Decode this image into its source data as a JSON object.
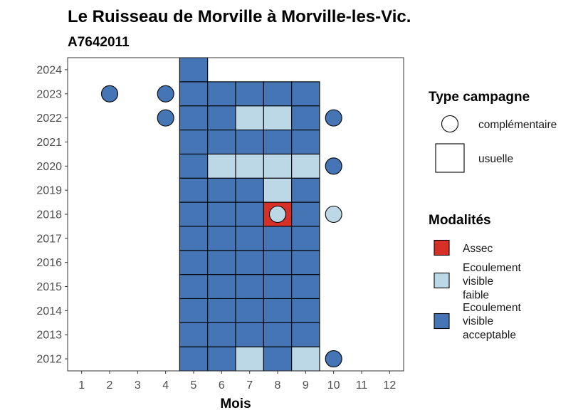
{
  "chart_data": {
    "type": "heatmap",
    "title": "Le Ruisseau de Morville à Morville-les-Vic.",
    "subtitle": "A7642011",
    "xlabel": "Mois",
    "ylabel": "",
    "x_ticks": [
      1,
      2,
      3,
      4,
      5,
      6,
      7,
      8,
      9,
      10,
      11,
      12
    ],
    "y_ticks": [
      2012,
      2013,
      2014,
      2015,
      2016,
      2017,
      2018,
      2019,
      2020,
      2021,
      2022,
      2023,
      2024
    ],
    "xlim": [
      0.5,
      12.5
    ],
    "ylim": [
      2011.5,
      2024.5
    ],
    "grid": false,
    "colors": {
      "Assec": "#d73027",
      "Ecoulement visible faible": "#bcd7e6",
      "Ecoulement visible acceptable": "#4575b4"
    },
    "legend_type": {
      "title": "Type campagne",
      "items": [
        {
          "label": "complémentaire",
          "shape": "circle"
        },
        {
          "label": "usuelle",
          "shape": "square"
        }
      ]
    },
    "legend_modalites": {
      "title": "Modalités",
      "items": [
        {
          "key": "Assec",
          "lines": [
            "Assec"
          ]
        },
        {
          "key": "Ecoulement visible faible",
          "lines": [
            "Ecoulement",
            "visible",
            "faible"
          ]
        },
        {
          "key": "Ecoulement visible acceptable",
          "lines": [
            "Ecoulement",
            "visible",
            "acceptable"
          ]
        }
      ]
    },
    "usuelle": [
      {
        "year": 2012,
        "values": {
          "5": "Ecoulement visible acceptable",
          "6": "Ecoulement visible acceptable",
          "7": "Ecoulement visible faible",
          "8": "Ecoulement visible acceptable",
          "9": "Ecoulement visible faible"
        }
      },
      {
        "year": 2013,
        "values": {
          "5": "Ecoulement visible acceptable",
          "6": "Ecoulement visible acceptable",
          "7": "Ecoulement visible acceptable",
          "8": "Ecoulement visible acceptable",
          "9": "Ecoulement visible acceptable"
        }
      },
      {
        "year": 2014,
        "values": {
          "5": "Ecoulement visible acceptable",
          "6": "Ecoulement visible acceptable",
          "7": "Ecoulement visible acceptable",
          "8": "Ecoulement visible acceptable",
          "9": "Ecoulement visible acceptable"
        }
      },
      {
        "year": 2015,
        "values": {
          "5": "Ecoulement visible acceptable",
          "6": "Ecoulement visible acceptable",
          "7": "Ecoulement visible acceptable",
          "8": "Ecoulement visible acceptable",
          "9": "Ecoulement visible acceptable"
        }
      },
      {
        "year": 2016,
        "values": {
          "5": "Ecoulement visible acceptable",
          "6": "Ecoulement visible acceptable",
          "7": "Ecoulement visible acceptable",
          "8": "Ecoulement visible acceptable",
          "9": "Ecoulement visible acceptable"
        }
      },
      {
        "year": 2017,
        "values": {
          "5": "Ecoulement visible acceptable",
          "6": "Ecoulement visible acceptable",
          "7": "Ecoulement visible acceptable",
          "8": "Ecoulement visible acceptable",
          "9": "Ecoulement visible acceptable"
        }
      },
      {
        "year": 2018,
        "values": {
          "5": "Ecoulement visible acceptable",
          "6": "Ecoulement visible acceptable",
          "7": "Ecoulement visible acceptable",
          "8": "Assec",
          "9": "Ecoulement visible acceptable"
        }
      },
      {
        "year": 2019,
        "values": {
          "5": "Ecoulement visible acceptable",
          "6": "Ecoulement visible acceptable",
          "7": "Ecoulement visible acceptable",
          "8": "Ecoulement visible faible",
          "9": "Ecoulement visible acceptable"
        }
      },
      {
        "year": 2020,
        "values": {
          "5": "Ecoulement visible acceptable",
          "6": "Ecoulement visible faible",
          "7": "Ecoulement visible faible",
          "8": "Ecoulement visible faible",
          "9": "Ecoulement visible faible"
        }
      },
      {
        "year": 2021,
        "values": {
          "5": "Ecoulement visible acceptable",
          "6": "Ecoulement visible acceptable",
          "7": "Ecoulement visible acceptable",
          "8": "Ecoulement visible acceptable",
          "9": "Ecoulement visible acceptable"
        }
      },
      {
        "year": 2022,
        "values": {
          "5": "Ecoulement visible acceptable",
          "6": "Ecoulement visible acceptable",
          "7": "Ecoulement visible faible",
          "8": "Ecoulement visible faible",
          "9": "Ecoulement visible acceptable"
        }
      },
      {
        "year": 2023,
        "values": {
          "5": "Ecoulement visible acceptable",
          "6": "Ecoulement visible acceptable",
          "7": "Ecoulement visible acceptable",
          "8": "Ecoulement visible acceptable",
          "9": "Ecoulement visible acceptable"
        }
      },
      {
        "year": 2024,
        "values": {
          "5": "Ecoulement visible acceptable"
        }
      }
    ],
    "complementaire": [
      {
        "year": 2012,
        "month": 10,
        "value": "Ecoulement visible acceptable"
      },
      {
        "year": 2018,
        "month": 8,
        "value": "Ecoulement visible faible"
      },
      {
        "year": 2018,
        "month": 10,
        "value": "Ecoulement visible faible"
      },
      {
        "year": 2020,
        "month": 10,
        "value": "Ecoulement visible acceptable"
      },
      {
        "year": 2022,
        "month": 4,
        "value": "Ecoulement visible acceptable"
      },
      {
        "year": 2022,
        "month": 10,
        "value": "Ecoulement visible acceptable"
      },
      {
        "year": 2023,
        "month": 2,
        "value": "Ecoulement visible acceptable"
      },
      {
        "year": 2023,
        "month": 4,
        "value": "Ecoulement visible acceptable"
      }
    ]
  }
}
